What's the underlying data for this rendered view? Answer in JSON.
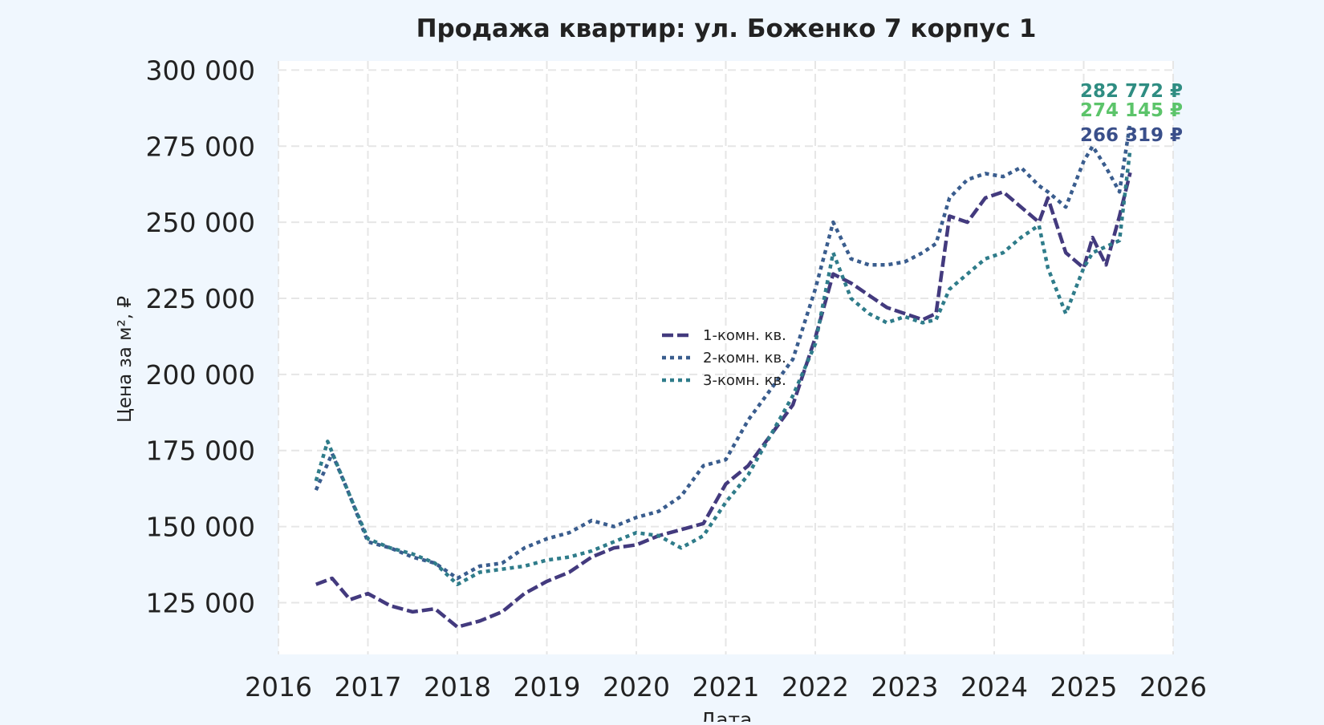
{
  "chart_data": {
    "type": "line",
    "title": "Продажа квартир: ул. Боженко 7 корпус 1",
    "xlabel": "Дата",
    "ylabel": "Цена за м², ₽",
    "xlim": [
      2016,
      2026
    ],
    "ylim": [
      108000,
      303000
    ],
    "x_ticks": [
      "2016",
      "2017",
      "2018",
      "2019",
      "2020",
      "2021",
      "2022",
      "2023",
      "2024",
      "2025",
      "2026"
    ],
    "y_ticks": [
      "125 000",
      "150 000",
      "175 000",
      "200 000",
      "225 000",
      "250 000",
      "275 000",
      "300 000"
    ],
    "grid": true,
    "legend_position": "center",
    "series": [
      {
        "name": "1-комн. кв.",
        "color": "#433a7e",
        "style": "dashed",
        "x": [
          2016.42,
          2016.6,
          2016.8,
          2017.0,
          2017.25,
          2017.5,
          2017.75,
          2018.0,
          2018.25,
          2018.5,
          2018.75,
          2019.0,
          2019.25,
          2019.5,
          2019.75,
          2020.0,
          2020.25,
          2020.5,
          2020.75,
          2021.0,
          2021.25,
          2021.5,
          2021.75,
          2022.0,
          2022.2,
          2022.4,
          2022.6,
          2022.8,
          2023.0,
          2023.2,
          2023.35,
          2023.5,
          2023.7,
          2023.9,
          2024.1,
          2024.3,
          2024.5,
          2024.6,
          2024.8,
          2025.0,
          2025.1,
          2025.25,
          2025.4,
          2025.52
        ],
        "y": [
          131000,
          133000,
          126000,
          128000,
          124000,
          122000,
          123000,
          117000,
          119000,
          122000,
          128000,
          132000,
          135000,
          140000,
          143000,
          144000,
          147000,
          149000,
          151000,
          164000,
          170000,
          180000,
          190000,
          212000,
          233000,
          230000,
          226000,
          222000,
          220000,
          218000,
          220000,
          252000,
          250000,
          258000,
          260000,
          255000,
          250000,
          258000,
          240000,
          235000,
          245000,
          236000,
          252000,
          266319
        ]
      },
      {
        "name": "2-комн. кв.",
        "color": "#3a5d8e",
        "style": "dotted",
        "x": [
          2016.42,
          2016.6,
          2016.8,
          2017.0,
          2017.25,
          2017.5,
          2017.75,
          2018.0,
          2018.25,
          2018.5,
          2018.75,
          2019.0,
          2019.25,
          2019.5,
          2019.75,
          2020.0,
          2020.25,
          2020.5,
          2020.75,
          2021.0,
          2021.25,
          2021.5,
          2021.75,
          2022.0,
          2022.2,
          2022.4,
          2022.6,
          2022.8,
          2023.0,
          2023.2,
          2023.35,
          2023.5,
          2023.7,
          2023.9,
          2024.1,
          2024.3,
          2024.5,
          2024.6,
          2024.8,
          2025.0,
          2025.1,
          2025.25,
          2025.4,
          2025.52
        ],
        "y": [
          162000,
          174000,
          160000,
          145000,
          143000,
          140000,
          138000,
          133000,
          137000,
          138000,
          143000,
          146000,
          148000,
          152000,
          150000,
          153000,
          155000,
          160000,
          170000,
          172000,
          185000,
          195000,
          205000,
          228000,
          250000,
          238000,
          236000,
          236000,
          237000,
          240000,
          243000,
          258000,
          264000,
          266000,
          265000,
          268000,
          262000,
          260000,
          255000,
          270000,
          275000,
          268000,
          260000,
          282772
        ]
      },
      {
        "name": "3-комн. кв.",
        "color": "#2f7c8a",
        "style": "dotted",
        "x": [
          2016.42,
          2016.55,
          2016.8,
          2017.0,
          2017.25,
          2017.5,
          2017.75,
          2018.0,
          2018.25,
          2018.5,
          2018.75,
          2019.0,
          2019.25,
          2019.5,
          2019.75,
          2020.0,
          2020.25,
          2020.5,
          2020.75,
          2021.0,
          2021.25,
          2021.5,
          2021.75,
          2022.0,
          2022.2,
          2022.4,
          2022.6,
          2022.8,
          2023.0,
          2023.2,
          2023.35,
          2023.5,
          2023.7,
          2023.9,
          2024.1,
          2024.3,
          2024.5,
          2024.6,
          2024.8,
          2025.0,
          2025.1,
          2025.25,
          2025.4,
          2025.52
        ],
        "y": [
          165000,
          178000,
          160000,
          146000,
          143000,
          141000,
          138000,
          131000,
          135000,
          136000,
          137000,
          139000,
          140000,
          142000,
          145000,
          148000,
          147000,
          143000,
          147000,
          158000,
          167000,
          180000,
          193000,
          210000,
          240000,
          225000,
          220000,
          217000,
          219000,
          217000,
          218000,
          228000,
          233000,
          238000,
          240000,
          245000,
          249000,
          235000,
          220000,
          235000,
          240000,
          242000,
          244000,
          274145
        ]
      }
    ],
    "end_labels": [
      {
        "text": "282 772 ₽",
        "value": 282772,
        "color": "#2f8d82"
      },
      {
        "text": "274 145 ₽",
        "value": 274145,
        "color": "#5cc46a"
      },
      {
        "text": "266 319 ₽",
        "value": 266319,
        "color": "#3a4f8a"
      }
    ]
  }
}
